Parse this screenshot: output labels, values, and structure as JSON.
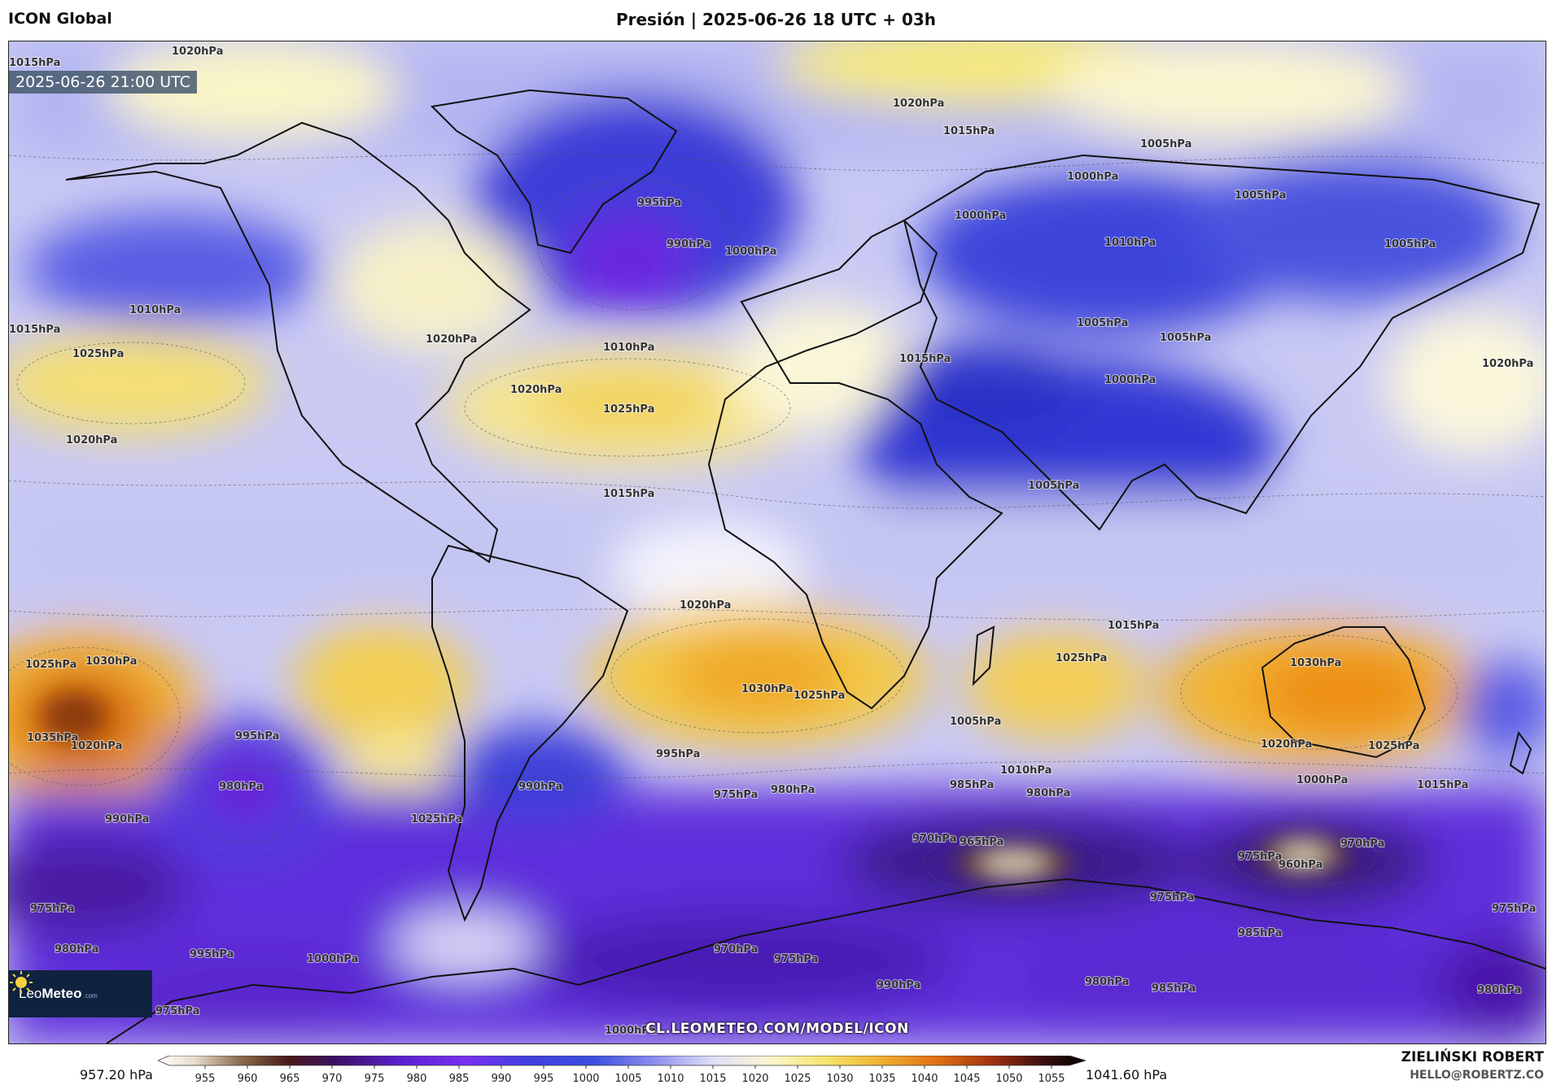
{
  "header": {
    "model": "ICON Global",
    "title": "Presión | 2025-06-26 18 UTC + 03h"
  },
  "map": {
    "valid_time": "2025-06-26 21:00 UTC",
    "website": "CL.LEOMETEO.COM/MODEL/ICON",
    "logo": {
      "name": "LeoMeteo",
      "part1": "Leo",
      "part2": "Meteo",
      "suffix": ".com"
    },
    "contour_labels": [
      "1020hPa",
      "1015hPa",
      "1020hPa",
      "1015hPa",
      "1005hPa",
      "1000hPa",
      "995hPa",
      "990hPa",
      "1000hPa",
      "1000hPa",
      "1005hPa",
      "1010hPa",
      "1005hPa",
      "1015hPa",
      "1010hPa",
      "1025hPa",
      "1020hPa",
      "1020hPa",
      "1025hPa",
      "1010hPa",
      "1015hPa",
      "1020hPa",
      "1005hPa",
      "1005hPa",
      "1015hPa",
      "1000hPa",
      "1005hPa",
      "1015hPa",
      "1020hPa",
      "1025hPa",
      "1030hPa",
      "1030hPa",
      "1025hPa",
      "1025hPa",
      "1030hPa",
      "1035hPa",
      "1020hPa",
      "995hPa",
      "980hPa",
      "990hPa",
      "995hPa",
      "990hPa",
      "975hPa",
      "980hPa",
      "985hPa",
      "980hPa",
      "970hPa",
      "965hPa",
      "975hPa",
      "960hPa",
      "970hPa",
      "975hPa",
      "985hPa",
      "970hPa",
      "975hPa",
      "990hPa",
      "980hPa",
      "975hPa",
      "980hPa",
      "995hPa",
      "1000hPa",
      "1025hPa",
      "1020hPa",
      "1010hPa",
      "1000hPa",
      "1015hPa",
      "1020hPa",
      "1025hPa",
      "1005hPa",
      "975hPa",
      "985hPa",
      "975hPa",
      "980hPa",
      "1000hPa"
    ]
  },
  "colorbar": {
    "min_label": "957.20 hPa",
    "max_label": "1041.60 hPa",
    "ticks": [
      "955",
      "960",
      "965",
      "970",
      "975",
      "980",
      "985",
      "990",
      "995",
      "1000",
      "1005",
      "1010",
      "1015",
      "1020",
      "1025",
      "1030",
      "1035",
      "1040",
      "1045",
      "1050",
      "1055"
    ]
  },
  "credits": {
    "author": "ZIELIŃSKI ROBERT",
    "email": "HELLO@ROBERTZ.CO"
  },
  "colors": {
    "low_deep": "#5a1fd6",
    "low": "#3a3ad8",
    "mid_low": "#8a8cf0",
    "neutral": "#f2f2fb",
    "high": "#f6e66a",
    "high_strong": "#f0a020",
    "very_high": "#d0500a"
  }
}
